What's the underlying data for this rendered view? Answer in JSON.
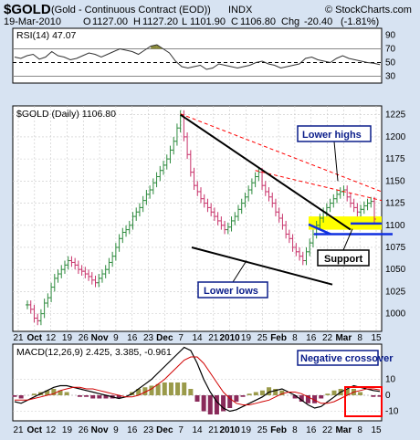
{
  "header": {
    "symbol": "$GOLD",
    "description": "(Gold - Continuous Contract (EOD))",
    "exchange": "INDX",
    "watermark": "© StockCharts.com",
    "date": "19-Mar-2010",
    "open_label": "O",
    "open": "1127.00",
    "high_label": "H",
    "high": "1127.20",
    "low_label": "L",
    "low": "1101.90",
    "close_label": "C",
    "close": "1106.80",
    "chg_label": "Chg",
    "chg": "-20.40",
    "chg_pct": "(-1.81%)",
    "chg_color": "#d40000"
  },
  "rsi_panel": {
    "label": "RSI(14) 47.07",
    "y_ticks": [
      "90",
      "70",
      "50",
      "30"
    ]
  },
  "price_panel": {
    "label": "$GOLD (Daily) 1106.80",
    "y_ticks": [
      "1225",
      "1200",
      "1175",
      "1150",
      "1125",
      "1100",
      "1075",
      "1050",
      "1025",
      "1000"
    ],
    "annotations": {
      "lower_highs": "Lower highs",
      "support": "Support",
      "lower_lows": "Lower lows"
    }
  },
  "macd_panel": {
    "label": "MACD(12,26,9) 2.425, 3.385, -0.961",
    "y_ticks": [
      "10",
      "0",
      "-10"
    ],
    "annotation": "Negative crossover"
  },
  "x_axis": {
    "labels": [
      {
        "text": "21",
        "bold": false
      },
      {
        "text": "Oct",
        "bold": true
      },
      {
        "text": "12",
        "bold": false
      },
      {
        "text": "19",
        "bold": false
      },
      {
        "text": "26",
        "bold": false
      },
      {
        "text": "Nov",
        "bold": true
      },
      {
        "text": "9",
        "bold": false
      },
      {
        "text": "16",
        "bold": false
      },
      {
        "text": "23",
        "bold": false
      },
      {
        "text": "Dec",
        "bold": true
      },
      {
        "text": "7",
        "bold": false
      },
      {
        "text": "14",
        "bold": false
      },
      {
        "text": "21",
        "bold": false
      },
      {
        "text": "2010",
        "bold": true
      },
      {
        "text": "19",
        "bold": false
      },
      {
        "text": "25",
        "bold": false
      },
      {
        "text": "Feb",
        "bold": true
      },
      {
        "text": "8",
        "bold": false
      },
      {
        "text": "16",
        "bold": false
      },
      {
        "text": "22",
        "bold": false
      },
      {
        "text": "Mar",
        "bold": true
      },
      {
        "text": "8",
        "bold": false
      },
      {
        "text": "15",
        "bold": false
      }
    ]
  },
  "colors": {
    "panel_bg": "#ffffff",
    "frame": "#000000",
    "outer_bg": "#d7e3f2",
    "grid": "#c8c8c8",
    "up_bar": "#2e8b3e",
    "down_bar": "#c8326a",
    "trendline": "#000000",
    "resistance": "#ff0000",
    "support_zone": "#ffff00",
    "blue_line": "#1030e0",
    "macd_line": "#000000",
    "signal_line": "#d00000",
    "hist_pos": "#9a9a4a",
    "hist_neg": "#8a2a5a",
    "rsi_line": "#333333",
    "rsi_fill": "#8b8b3a",
    "callout_border": "#0a1d8a",
    "crossover_box": "#ff0000"
  },
  "chart_data": [
    {
      "type": "line",
      "title": "RSI(14) 47.07",
      "xlabel": "",
      "ylabel": "",
      "x_range": [
        "2009-09-21",
        "2010-03-19"
      ],
      "ylim": [
        20,
        100
      ],
      "reference_lines": [
        70,
        50,
        30
      ],
      "series": [
        {
          "name": "RSI(14)",
          "values": [
            58,
            56,
            60,
            62,
            55,
            58,
            66,
            60,
            58,
            54,
            56,
            60,
            64,
            62,
            58,
            62,
            66,
            70,
            68,
            66,
            62,
            68,
            74,
            76,
            70,
            64,
            52,
            44,
            42,
            44,
            46,
            40,
            42,
            48,
            46,
            44,
            42,
            44,
            46,
            50,
            52,
            48,
            46,
            42,
            44,
            46,
            48,
            56,
            58,
            54,
            52,
            50,
            56,
            60,
            56,
            54,
            52,
            50,
            49,
            47
          ]
        }
      ]
    },
    {
      "type": "line",
      "title": "$GOLD (Daily) 1106.80",
      "xlabel": "",
      "ylabel": "",
      "x_range": [
        "2009-09-21",
        "2010-03-19"
      ],
      "ylim": [
        980,
        1235
      ],
      "series": [
        {
          "name": "$GOLD",
          "values": [
            1010,
            1005,
            995,
            992,
            1000,
            1012,
            1018,
            1030,
            1040,
            1045,
            1050,
            1055,
            1060,
            1058,
            1055,
            1050,
            1048,
            1045,
            1042,
            1038,
            1035,
            1040,
            1045,
            1050,
            1058,
            1065,
            1075,
            1085,
            1092,
            1095,
            1100,
            1110,
            1115,
            1120,
            1128,
            1135,
            1140,
            1148,
            1155,
            1162,
            1168,
            1175,
            1185,
            1195,
            1210,
            1225,
            1200,
            1180,
            1160,
            1145,
            1138,
            1130,
            1125,
            1120,
            1115,
            1110,
            1105,
            1100,
            1095,
            1098,
            1105,
            1110,
            1118,
            1125,
            1132,
            1140,
            1148,
            1155,
            1160,
            1145,
            1138,
            1132,
            1125,
            1115,
            1108,
            1100,
            1090,
            1085,
            1075,
            1070,
            1065,
            1060,
            1070,
            1080,
            1090,
            1100,
            1108,
            1115,
            1120,
            1125,
            1130,
            1135,
            1138,
            1140,
            1132,
            1125,
            1120,
            1115,
            1118,
            1122,
            1125,
            1127,
            1107
          ]
        }
      ],
      "annotations": [
        "Lower highs",
        "Support",
        "Lower lows"
      ]
    },
    {
      "type": "line",
      "title": "MACD(12,26,9) 2.425, 3.385, -0.961",
      "xlabel": "",
      "ylabel": "",
      "x_range": [
        "2009-09-21",
        "2010-03-19"
      ],
      "ylim": [
        -16,
        32
      ],
      "series": [
        {
          "name": "MACD",
          "values": [
            -4,
            -5,
            -3,
            -1,
            1,
            3,
            5,
            6,
            6,
            5,
            4,
            3,
            2,
            1,
            0,
            -1,
            -2,
            -1,
            1,
            4,
            7,
            10,
            14,
            18,
            22,
            26,
            30,
            28,
            20,
            10,
            2,
            -4,
            -8,
            -10,
            -9,
            -7,
            -5,
            -3,
            -1,
            2,
            3,
            4,
            2,
            0,
            -3,
            -6,
            -8,
            -7,
            -4,
            -1,
            2,
            4,
            6,
            5,
            4,
            3,
            2.4
          ]
        },
        {
          "name": "Signal",
          "values": [
            -3,
            -3,
            -3,
            -2,
            -1,
            0,
            1,
            3,
            4,
            5,
            5,
            4,
            4,
            3,
            2,
            1,
            0,
            -1,
            -1,
            0,
            2,
            4,
            7,
            10,
            14,
            18,
            22,
            24,
            24,
            20,
            14,
            8,
            2,
            -2,
            -5,
            -6,
            -6,
            -5,
            -4,
            -3,
            -1,
            1,
            2,
            2,
            1,
            -1,
            -3,
            -5,
            -5,
            -4,
            -2,
            0,
            2,
            3,
            4,
            4,
            3.4
          ]
        },
        {
          "name": "Histogram",
          "values": [
            -1,
            -2,
            0,
            1,
            2,
            3,
            4,
            3,
            2,
            0,
            -1,
            -1,
            -2,
            -2,
            -2,
            -2,
            -2,
            0,
            2,
            4,
            5,
            6,
            7,
            8,
            8,
            8,
            8,
            4,
            -4,
            -10,
            -12,
            -12,
            -10,
            -8,
            -4,
            -1,
            1,
            2,
            3,
            5,
            4,
            3,
            0,
            -2,
            -4,
            -5,
            -5,
            -2,
            1,
            3,
            4,
            4,
            4,
            2,
            0,
            -1,
            -0.96
          ]
        }
      ],
      "annotations": [
        "Negative crossover"
      ]
    }
  ]
}
